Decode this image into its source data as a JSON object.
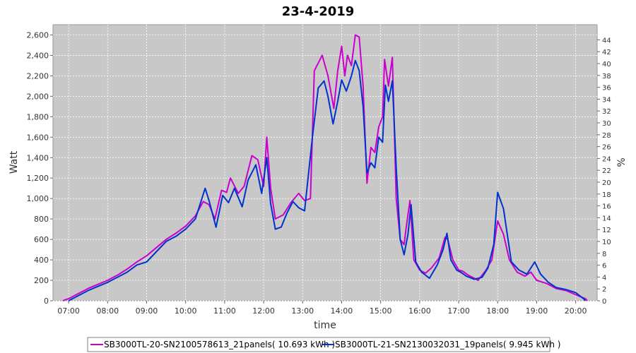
{
  "chart_data": {
    "type": "line",
    "title": "23-4-2019",
    "xlabel": "time",
    "ylabel": "Watt",
    "ylabel_right": "%",
    "xlim": [
      6.6,
      20.55
    ],
    "ylim": [
      0,
      2700
    ],
    "ylim_right": [
      0,
      46.552
    ],
    "x_ticks": [
      "07:00",
      "08:00",
      "09:00",
      "10:00",
      "11:00",
      "12:00",
      "13:00",
      "14:00",
      "15:00",
      "16:00",
      "17:00",
      "18:00",
      "19:00",
      "20:00"
    ],
    "y_ticks": [
      "0",
      "200",
      "400",
      "600",
      "800",
      "1,000",
      "1,200",
      "1,400",
      "1,600",
      "1,800",
      "2,000",
      "2,200",
      "2,400",
      "2,600"
    ],
    "y_ticks_right": [
      "0",
      "2",
      "4",
      "6",
      "8",
      "10",
      "12",
      "14",
      "16",
      "18",
      "20",
      "22",
      "24",
      "26",
      "28",
      "30",
      "32",
      "34",
      "36",
      "38",
      "40",
      "42",
      "44"
    ],
    "grid": true,
    "legend_position": "bottom",
    "colors": {
      "plot_bg": "#c8c8c8",
      "series1": "#cc00cc",
      "series2": "#0033cc"
    },
    "series": [
      {
        "name": "SB3000TL-20-SN2100578613_21panels( 10.693 kWh )",
        "color": "#cc00cc",
        "points": [
          [
            6.85,
            0
          ],
          [
            7.0,
            20
          ],
          [
            7.25,
            70
          ],
          [
            7.5,
            120
          ],
          [
            7.75,
            160
          ],
          [
            8.0,
            200
          ],
          [
            8.25,
            250
          ],
          [
            8.5,
            310
          ],
          [
            8.75,
            380
          ],
          [
            9.0,
            440
          ],
          [
            9.25,
            520
          ],
          [
            9.5,
            600
          ],
          [
            9.75,
            660
          ],
          [
            10.0,
            730
          ],
          [
            10.25,
            830
          ],
          [
            10.45,
            970
          ],
          [
            10.6,
            940
          ],
          [
            10.75,
            800
          ],
          [
            10.92,
            1080
          ],
          [
            11.05,
            1060
          ],
          [
            11.15,
            1200
          ],
          [
            11.35,
            1050
          ],
          [
            11.5,
            1120
          ],
          [
            11.7,
            1420
          ],
          [
            11.85,
            1380
          ],
          [
            12.0,
            1120
          ],
          [
            12.08,
            1600
          ],
          [
            12.18,
            1100
          ],
          [
            12.3,
            800
          ],
          [
            12.5,
            840
          ],
          [
            12.7,
            960
          ],
          [
            12.9,
            1050
          ],
          [
            13.05,
            980
          ],
          [
            13.2,
            1000
          ],
          [
            13.3,
            2250
          ],
          [
            13.5,
            2400
          ],
          [
            13.65,
            2200
          ],
          [
            13.8,
            1880
          ],
          [
            13.9,
            2250
          ],
          [
            14.0,
            2490
          ],
          [
            14.08,
            2200
          ],
          [
            14.15,
            2400
          ],
          [
            14.25,
            2300
          ],
          [
            14.35,
            2600
          ],
          [
            14.45,
            2580
          ],
          [
            14.55,
            2100
          ],
          [
            14.65,
            1150
          ],
          [
            14.75,
            1500
          ],
          [
            14.85,
            1450
          ],
          [
            14.95,
            1700
          ],
          [
            15.05,
            1800
          ],
          [
            15.1,
            2360
          ],
          [
            15.2,
            2100
          ],
          [
            15.3,
            2380
          ],
          [
            15.4,
            1000
          ],
          [
            15.5,
            600
          ],
          [
            15.6,
            550
          ],
          [
            15.65,
            700
          ],
          [
            15.75,
            980
          ],
          [
            15.85,
            400
          ],
          [
            16.0,
            300
          ],
          [
            16.15,
            270
          ],
          [
            16.3,
            320
          ],
          [
            16.5,
            420
          ],
          [
            16.65,
            620
          ],
          [
            16.72,
            600
          ],
          [
            16.85,
            400
          ],
          [
            17.0,
            300
          ],
          [
            17.1,
            290
          ],
          [
            17.25,
            250
          ],
          [
            17.5,
            200
          ],
          [
            17.7,
            300
          ],
          [
            17.85,
            400
          ],
          [
            18.0,
            780
          ],
          [
            18.15,
            650
          ],
          [
            18.3,
            400
          ],
          [
            18.5,
            280
          ],
          [
            18.7,
            240
          ],
          [
            18.85,
            280
          ],
          [
            19.0,
            200
          ],
          [
            19.25,
            170
          ],
          [
            19.5,
            120
          ],
          [
            19.75,
            100
          ],
          [
            20.0,
            60
          ],
          [
            20.25,
            20
          ],
          [
            20.3,
            0
          ]
        ]
      },
      {
        "name": "SB3000TL-21-SN2130032031_19panels( 9.945 kWh )",
        "color": "#0033cc",
        "points": [
          [
            7.0,
            0
          ],
          [
            7.25,
            50
          ],
          [
            7.5,
            100
          ],
          [
            7.75,
            140
          ],
          [
            8.0,
            180
          ],
          [
            8.25,
            230
          ],
          [
            8.5,
            280
          ],
          [
            8.75,
            350
          ],
          [
            9.0,
            380
          ],
          [
            9.25,
            480
          ],
          [
            9.5,
            580
          ],
          [
            9.75,
            630
          ],
          [
            10.0,
            700
          ],
          [
            10.25,
            800
          ],
          [
            10.5,
            1100
          ],
          [
            10.6,
            980
          ],
          [
            10.78,
            720
          ],
          [
            10.95,
            1030
          ],
          [
            11.1,
            960
          ],
          [
            11.25,
            1100
          ],
          [
            11.45,
            920
          ],
          [
            11.6,
            1180
          ],
          [
            11.8,
            1330
          ],
          [
            11.95,
            1050
          ],
          [
            12.08,
            1400
          ],
          [
            12.18,
            950
          ],
          [
            12.3,
            700
          ],
          [
            12.45,
            720
          ],
          [
            12.6,
            860
          ],
          [
            12.75,
            970
          ],
          [
            12.9,
            910
          ],
          [
            13.05,
            880
          ],
          [
            13.25,
            1600
          ],
          [
            13.4,
            2080
          ],
          [
            13.55,
            2150
          ],
          [
            13.65,
            2000
          ],
          [
            13.78,
            1730
          ],
          [
            13.9,
            1950
          ],
          [
            14.0,
            2160
          ],
          [
            14.12,
            2050
          ],
          [
            14.25,
            2200
          ],
          [
            14.35,
            2350
          ],
          [
            14.45,
            2250
          ],
          [
            14.55,
            1900
          ],
          [
            14.65,
            1250
          ],
          [
            14.75,
            1350
          ],
          [
            14.85,
            1300
          ],
          [
            14.95,
            1600
          ],
          [
            15.05,
            1550
          ],
          [
            15.12,
            2110
          ],
          [
            15.2,
            1950
          ],
          [
            15.3,
            2150
          ],
          [
            15.4,
            1300
          ],
          [
            15.5,
            600
          ],
          [
            15.6,
            450
          ],
          [
            15.7,
            650
          ],
          [
            15.78,
            940
          ],
          [
            15.9,
            380
          ],
          [
            16.05,
            280
          ],
          [
            16.25,
            220
          ],
          [
            16.45,
            350
          ],
          [
            16.6,
            500
          ],
          [
            16.7,
            660
          ],
          [
            16.8,
            400
          ],
          [
            16.95,
            300
          ],
          [
            17.05,
            280
          ],
          [
            17.2,
            240
          ],
          [
            17.4,
            210
          ],
          [
            17.6,
            230
          ],
          [
            17.75,
            320
          ],
          [
            17.9,
            550
          ],
          [
            18.0,
            1060
          ],
          [
            18.15,
            900
          ],
          [
            18.35,
            380
          ],
          [
            18.55,
            300
          ],
          [
            18.75,
            260
          ],
          [
            18.95,
            380
          ],
          [
            19.1,
            260
          ],
          [
            19.3,
            180
          ],
          [
            19.5,
            130
          ],
          [
            19.75,
            110
          ],
          [
            20.0,
            80
          ],
          [
            20.2,
            20
          ],
          [
            20.25,
            0
          ]
        ]
      }
    ]
  }
}
